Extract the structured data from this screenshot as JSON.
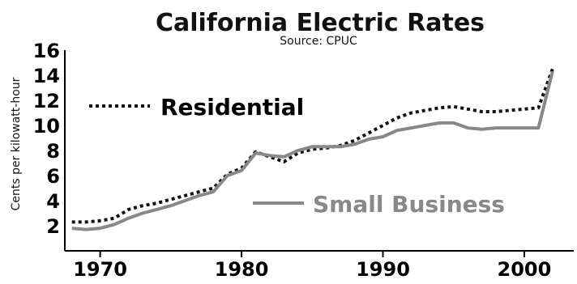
{
  "chart_data": {
    "type": "line",
    "title": "California Electric Rates",
    "subtitle": "Source: CPUC",
    "ylabel": "Cents per kilowatt-hour",
    "xlabel": "",
    "xlim": [
      1967.5,
      2003.5
    ],
    "ylim": [
      0,
      16
    ],
    "yticks": [
      2,
      4,
      6,
      8,
      10,
      12,
      14,
      16
    ],
    "xticks": [
      1970,
      1980,
      1990,
      2000
    ],
    "grid": false,
    "series": [
      {
        "name": "Residential",
        "style": "dotted",
        "color": "#111111",
        "x": [
          1968,
          1969,
          1970,
          1971,
          1972,
          1973,
          1974,
          1975,
          1976,
          1977,
          1978,
          1979,
          1980,
          1981,
          1982,
          1983,
          1984,
          1985,
          1986,
          1987,
          1988,
          1989,
          1990,
          1991,
          1992,
          1993,
          1994,
          1995,
          1996,
          1997,
          1998,
          1999,
          2000,
          2001,
          2002
        ],
        "y": [
          2.3,
          2.3,
          2.4,
          2.6,
          3.3,
          3.6,
          3.8,
          4.1,
          4.4,
          4.7,
          5.0,
          6.1,
          6.6,
          7.9,
          7.5,
          7.1,
          7.8,
          8.1,
          8.2,
          8.4,
          8.8,
          9.4,
          10.0,
          10.6,
          11.0,
          11.2,
          11.4,
          11.5,
          11.3,
          11.1,
          11.1,
          11.2,
          11.3,
          11.4,
          14.5
        ]
      },
      {
        "name": "Small Business",
        "style": "solid",
        "color": "#888888",
        "x": [
          1968,
          1969,
          1970,
          1971,
          1972,
          1973,
          1974,
          1975,
          1976,
          1977,
          1978,
          1979,
          1980,
          1981,
          1982,
          1983,
          1984,
          1985,
          1986,
          1987,
          1988,
          1989,
          1990,
          1991,
          1992,
          1993,
          1994,
          1995,
          1996,
          1997,
          1998,
          1999,
          2000,
          2001,
          2002
        ],
        "y": [
          1.8,
          1.7,
          1.8,
          2.1,
          2.6,
          3.0,
          3.3,
          3.6,
          4.0,
          4.4,
          4.7,
          6.0,
          6.4,
          7.8,
          7.6,
          7.5,
          8.0,
          8.3,
          8.3,
          8.3,
          8.5,
          8.9,
          9.1,
          9.6,
          9.8,
          10.0,
          10.2,
          10.2,
          9.8,
          9.7,
          9.8,
          9.8,
          9.8,
          9.8,
          14.3
        ]
      }
    ]
  }
}
